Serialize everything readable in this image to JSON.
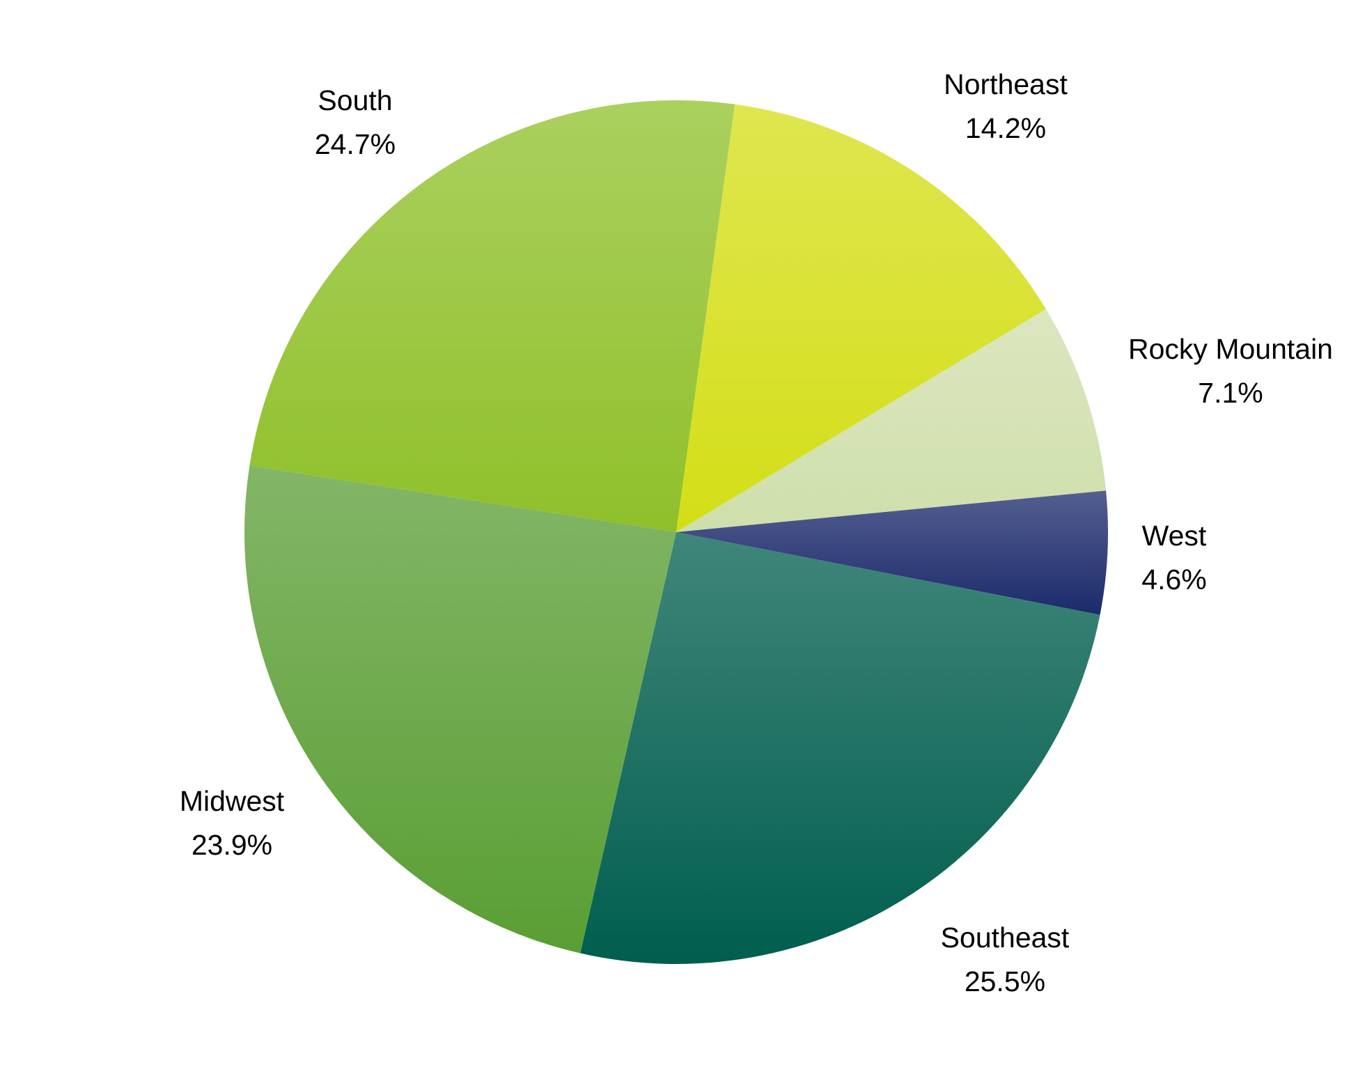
{
  "chart_data": {
    "type": "pie",
    "categories": [
      "Northeast",
      "Rocky Mountain",
      "West",
      "Southeast",
      "Midwest",
      "South"
    ],
    "values": [
      14.2,
      7.1,
      4.6,
      25.5,
      23.9,
      24.7
    ],
    "value_labels": [
      "14.2%",
      "7.1%",
      "4.6%",
      "25.5%",
      "23.9%",
      "24.7%"
    ],
    "colors": [
      "#d4de16",
      "#cfdfab",
      "#1b2a6b",
      "#005e4e",
      "#5a9e34",
      "#8fc02a"
    ]
  }
}
